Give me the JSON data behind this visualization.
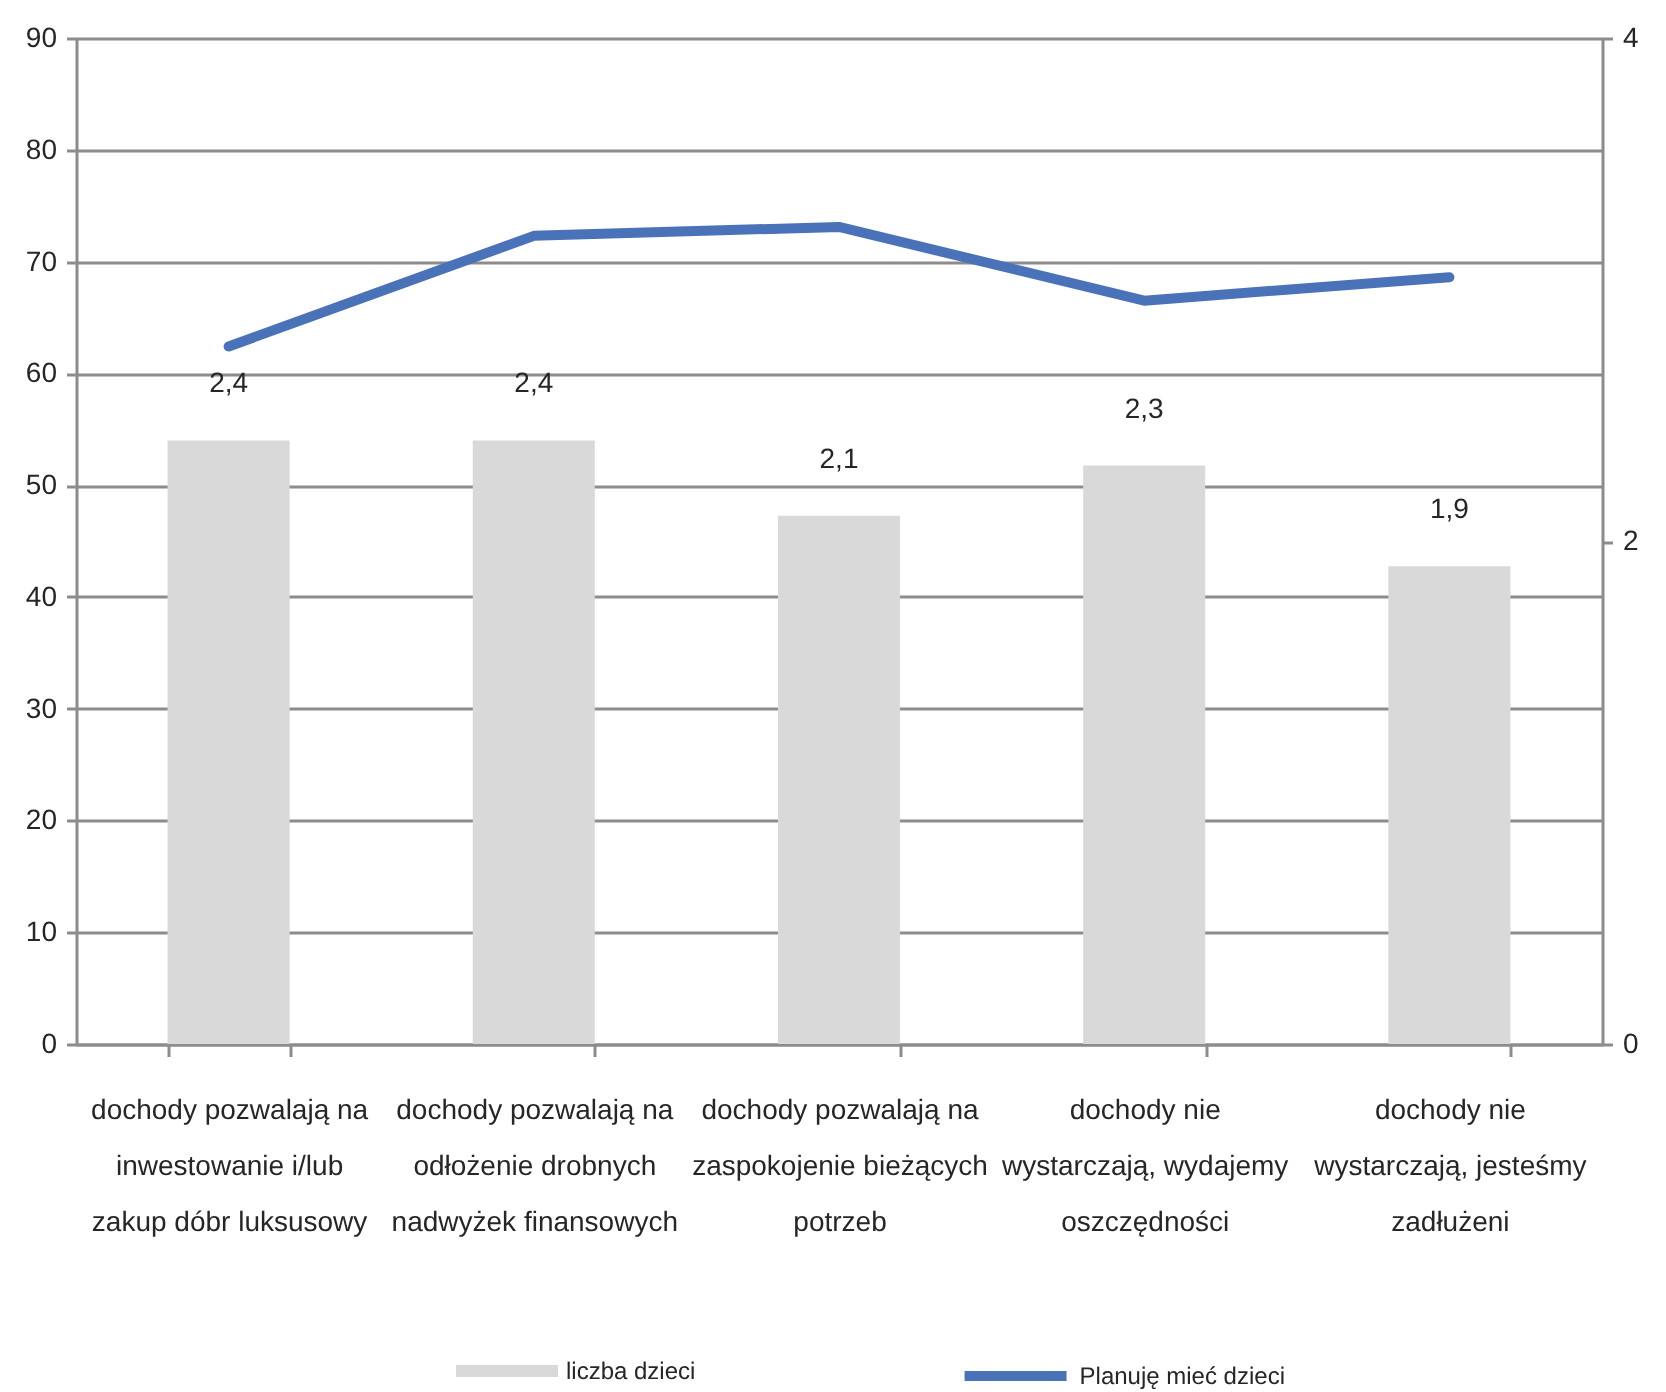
{
  "chart_data": {
    "type": "bar",
    "categories": [
      "dochody pozwalają na inwestowanie i/lub zakup dóbr luksusowy",
      "dochody pozwalają na odłożenie drobnych nadwyżek finansowych",
      "dochody pozwalają na zaspokojenie bieżących potrzeb",
      "dochody nie wystarczają, wydajemy oszczędności",
      "dochody nie wystarczają, jesteśmy zadłużeni"
    ],
    "series": [
      {
        "name": "liczba dzieci",
        "axis": "y2",
        "color": "#d9d9d9",
        "values": [
          2.4,
          2.4,
          2.1,
          2.3,
          1.9
        ],
        "value_labels": [
          "2,4",
          "2,4",
          "2,1",
          "2,3",
          "1,9"
        ]
      },
      {
        "name": "Planuję mieć dzieci",
        "type": "line",
        "color": "#4a72b8",
        "values": [
          62.4,
          72.3,
          73.1,
          66.5,
          68.6
        ]
      }
    ],
    "ylim": [
      0,
      90
    ],
    "yticks": [
      0,
      10,
      20,
      30,
      40,
      50,
      60,
      70,
      80,
      90
    ],
    "y2lim": [
      0,
      4
    ],
    "y2ticks": [
      0,
      2,
      4
    ],
    "grid": "y",
    "legend": "bottom"
  }
}
